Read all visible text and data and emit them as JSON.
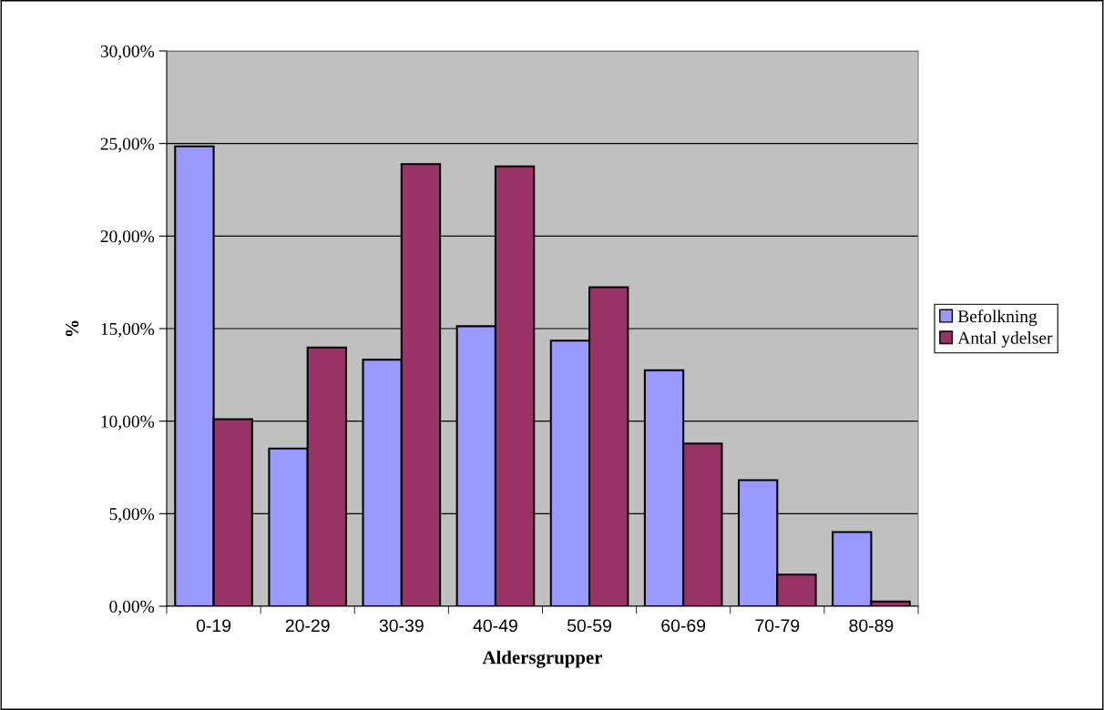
{
  "chart_data": {
    "type": "bar",
    "xlabel": "Aldersgrupper",
    "ylabel": "%",
    "categories": [
      "0-19",
      "20-29",
      "30-39",
      "40-49",
      "50-59",
      "60-69",
      "70-79",
      "80-89"
    ],
    "series": [
      {
        "name": "Befolkning",
        "color": "#9999ff",
        "values": [
          24.85,
          8.52,
          13.32,
          15.13,
          14.35,
          12.75,
          6.81,
          4.01
        ]
      },
      {
        "name": "Antal ydelser",
        "color": "#993366",
        "values": [
          10.11,
          13.98,
          23.89,
          23.77,
          17.24,
          8.79,
          1.71,
          0.25
        ]
      }
    ],
    "ylim": [
      0,
      30
    ],
    "yticks": [
      {
        "value": 0,
        "label": "0,00%"
      },
      {
        "value": 5,
        "label": "5,00%"
      },
      {
        "value": 10,
        "label": "10,00%"
      },
      {
        "value": 15,
        "label": "15,00%"
      },
      {
        "value": 20,
        "label": "20,00%"
      },
      {
        "value": 25,
        "label": "25,00%"
      },
      {
        "value": 30,
        "label": "30,00%"
      }
    ],
    "grid": "y",
    "legend": "right"
  }
}
